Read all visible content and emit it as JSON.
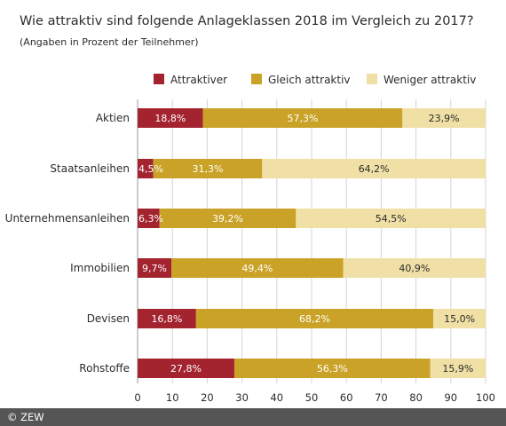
{
  "chart_data": {
    "type": "bar",
    "orientation": "horizontal",
    "stacked": true,
    "title": "Wie attraktiv sind folgende Anlageklassen 2018 im Vergleich zu 2017?",
    "subtitle": "(Angaben in Prozent der Teilnehmer)",
    "categories": [
      "Aktien",
      "Staatsanleihen",
      "Unternehmensanleihen",
      "Immobilien",
      "Devisen",
      "Rohstoffe"
    ],
    "series": [
      {
        "name": "Attraktiver",
        "color": "#a3232f",
        "values": [
          18.8,
          4.5,
          6.3,
          9.7,
          16.8,
          27.8
        ],
        "labels": [
          "18,8%",
          "4,5%",
          "6,3%",
          "9,7%",
          "16,8%",
          "27,8%"
        ]
      },
      {
        "name": "Gleich attraktiv",
        "color": "#c9a227",
        "values": [
          57.3,
          31.3,
          39.2,
          49.4,
          68.2,
          56.3
        ],
        "labels": [
          "57,3%",
          "31,3%",
          "39,2%",
          "49,4%",
          "68,2%",
          "56,3%"
        ]
      },
      {
        "name": "Weniger attraktiv",
        "color": "#f0e0a6",
        "values": [
          23.9,
          64.2,
          54.5,
          40.9,
          15.0,
          15.9
        ],
        "labels": [
          "23,9%",
          "64,2%",
          "54,5%",
          "40,9%",
          "15,0%",
          "15,9%"
        ]
      }
    ],
    "xlim": [
      0,
      100
    ],
    "xticks": [
      0,
      10,
      20,
      30,
      40,
      50,
      60,
      70,
      80,
      90,
      100
    ],
    "xtick_labels": [
      "0",
      "10",
      "20",
      "30",
      "40",
      "50",
      "60",
      "70",
      "80",
      "90",
      "100"
    ],
    "grid": true,
    "legend": "top"
  },
  "footer": {
    "credit": "© ZEW"
  }
}
